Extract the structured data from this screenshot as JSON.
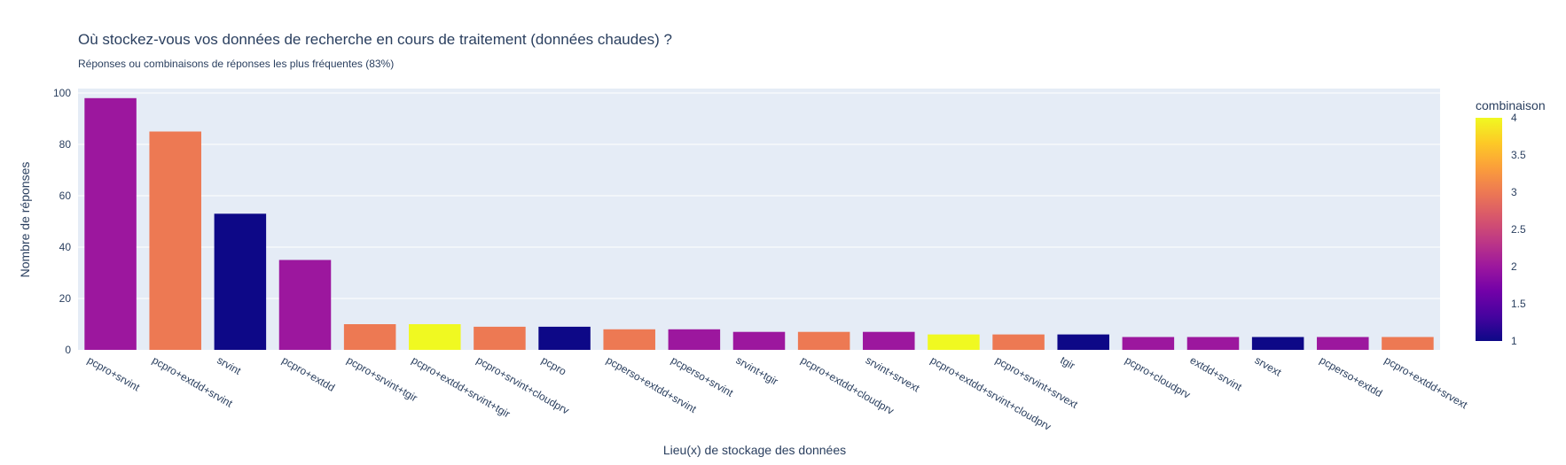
{
  "chart_data": {
    "type": "bar",
    "title": "Où stockez-vous vos données de recherche en cours de traitement (données chaudes) ?",
    "subtitle": "Réponses ou combinaisons de réponses les plus fréquentes (83%)",
    "xlabel": "Lieu(x) de stockage des données",
    "ylabel": "Nombre de réponses",
    "ylim": [
      0,
      100
    ],
    "yticks": [
      0,
      20,
      40,
      60,
      80,
      100
    ],
    "grid": true,
    "categories": [
      "pcpro+srvint",
      "pcpro+extdd+srvint",
      "srvint",
      "pcpro+extdd",
      "pcpro+srvint+tgir",
      "pcpro+extdd+srvint+tgir",
      "pcpro+srvint+cloudprv",
      "pcpro",
      "pcperso+extdd+srvint",
      "pcperso+srvint",
      "srvint+tgir",
      "pcpro+extdd+cloudprv",
      "srvint+srvext",
      "pcpro+extdd+srvint+cloudprv",
      "pcpro+srvint+srvext",
      "tgir",
      "pcpro+cloudprv",
      "extdd+srvint",
      "srvext",
      "pcperso+extdd",
      "pcpro+extdd+srvext"
    ],
    "values": [
      98,
      85,
      53,
      35,
      10,
      10,
      9,
      9,
      8,
      8,
      7,
      7,
      7,
      6,
      6,
      6,
      5,
      5,
      5,
      5,
      5
    ],
    "combinaison": [
      2,
      3,
      1,
      2,
      3,
      4,
      3,
      1,
      3,
      2,
      2,
      3,
      2,
      4,
      3,
      1,
      2,
      2,
      1,
      2,
      3
    ],
    "colorbar": {
      "title": "combinaison",
      "range": [
        1,
        4
      ],
      "ticks": [
        "1",
        "1.5",
        "2",
        "2.5",
        "3",
        "3.5",
        "4"
      ],
      "colors": {
        "1": "#0d0887",
        "2": "#9c179e",
        "3": "#ed7953",
        "4": "#f0f921"
      }
    },
    "plot_background": "#e5ecf6"
  }
}
